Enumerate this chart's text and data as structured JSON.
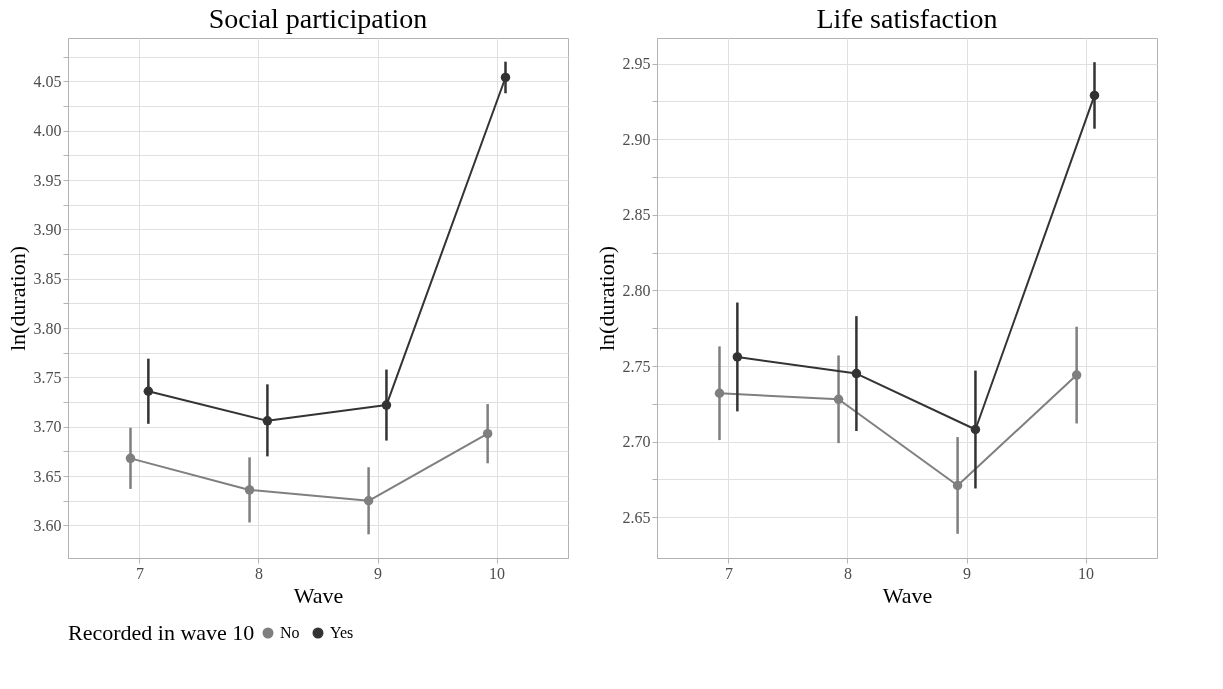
{
  "chart_data": [
    {
      "type": "line",
      "title": "Social participation",
      "xlabel": "Wave",
      "ylabel": "ln(duration)",
      "legend_title": "Recorded in wave 10",
      "legend": "bottom",
      "grid": true,
      "marker": "circle",
      "line_style": "solid",
      "xlim": [
        6.4,
        10.6
      ],
      "xticks": [
        7,
        8,
        9,
        10
      ],
      "ylim": [
        3.567,
        4.094
      ],
      "yticks": [
        {
          "value": 3.6,
          "label": "3.60"
        },
        {
          "value": 3.625,
          "label": null
        },
        {
          "value": 3.65,
          "label": "3.65"
        },
        {
          "value": 3.675,
          "label": null
        },
        {
          "value": 3.7,
          "label": "3.70"
        },
        {
          "value": 3.725,
          "label": null
        },
        {
          "value": 3.75,
          "label": "3.75"
        },
        {
          "value": 3.775,
          "label": null
        },
        {
          "value": 3.8,
          "label": "3.80"
        },
        {
          "value": 3.825,
          "label": null
        },
        {
          "value": 3.85,
          "label": "3.85"
        },
        {
          "value": 3.875,
          "label": null
        },
        {
          "value": 3.9,
          "label": "3.90"
        },
        {
          "value": 3.925,
          "label": null
        },
        {
          "value": 3.95,
          "label": "3.95"
        },
        {
          "value": 3.975,
          "label": null
        },
        {
          "value": 4.0,
          "label": "4.00"
        },
        {
          "value": 4.025,
          "label": null
        },
        {
          "value": 4.05,
          "label": "4.05"
        },
        {
          "value": 4.075,
          "label": null
        }
      ],
      "series": [
        {
          "name": "No",
          "color": "#7f7f7f",
          "x": [
            6.925,
            7.925,
            8.925,
            9.925
          ],
          "values": [
            3.668,
            3.636,
            3.625,
            3.693
          ],
          "errors": [
            [
              3.637,
              3.699
            ],
            [
              3.603,
              3.669
            ],
            [
              3.591,
              3.659
            ],
            [
              3.663,
              3.723
            ]
          ]
        },
        {
          "name": "Yes",
          "color": "#333333",
          "x": [
            7.075,
            8.075,
            9.075,
            10.075
          ],
          "values": [
            3.736,
            3.706,
            3.722,
            4.054
          ],
          "errors": [
            [
              3.703,
              3.769
            ],
            [
              3.67,
              3.743
            ],
            [
              3.686,
              3.758
            ],
            [
              4.038,
              4.07
            ]
          ]
        }
      ]
    },
    {
      "type": "line",
      "title": "Life satisfaction",
      "xlabel": "Wave",
      "ylabel": "ln(duration)",
      "grid": true,
      "marker": "circle",
      "line_style": "solid",
      "xlim": [
        6.4,
        10.6
      ],
      "xticks": [
        7,
        8,
        9,
        10
      ],
      "ylim": [
        2.623,
        2.967
      ],
      "yticks": [
        {
          "value": 2.65,
          "label": "2.65"
        },
        {
          "value": 2.675,
          "label": null
        },
        {
          "value": 2.7,
          "label": "2.70"
        },
        {
          "value": 2.725,
          "label": null
        },
        {
          "value": 2.75,
          "label": "2.75"
        },
        {
          "value": 2.775,
          "label": null
        },
        {
          "value": 2.8,
          "label": "2.80"
        },
        {
          "value": 2.825,
          "label": null
        },
        {
          "value": 2.85,
          "label": "2.85"
        },
        {
          "value": 2.875,
          "label": null
        },
        {
          "value": 2.9,
          "label": "2.90"
        },
        {
          "value": 2.925,
          "label": null
        },
        {
          "value": 2.95,
          "label": "2.95"
        }
      ],
      "series": [
        {
          "name": "No",
          "color": "#7f7f7f",
          "x": [
            6.925,
            7.925,
            8.925,
            9.925
          ],
          "values": [
            2.732,
            2.728,
            2.671,
            2.744
          ],
          "errors": [
            [
              2.701,
              2.763
            ],
            [
              2.699,
              2.757
            ],
            [
              2.639,
              2.703
            ],
            [
              2.712,
              2.776
            ]
          ]
        },
        {
          "name": "Yes",
          "color": "#333333",
          "x": [
            7.075,
            8.075,
            9.075,
            10.075
          ],
          "values": [
            2.756,
            2.745,
            2.708,
            2.929
          ],
          "errors": [
            [
              2.72,
              2.792
            ],
            [
              2.707,
              2.783
            ],
            [
              2.669,
              2.747
            ],
            [
              2.907,
              2.951
            ]
          ]
        }
      ]
    }
  ]
}
